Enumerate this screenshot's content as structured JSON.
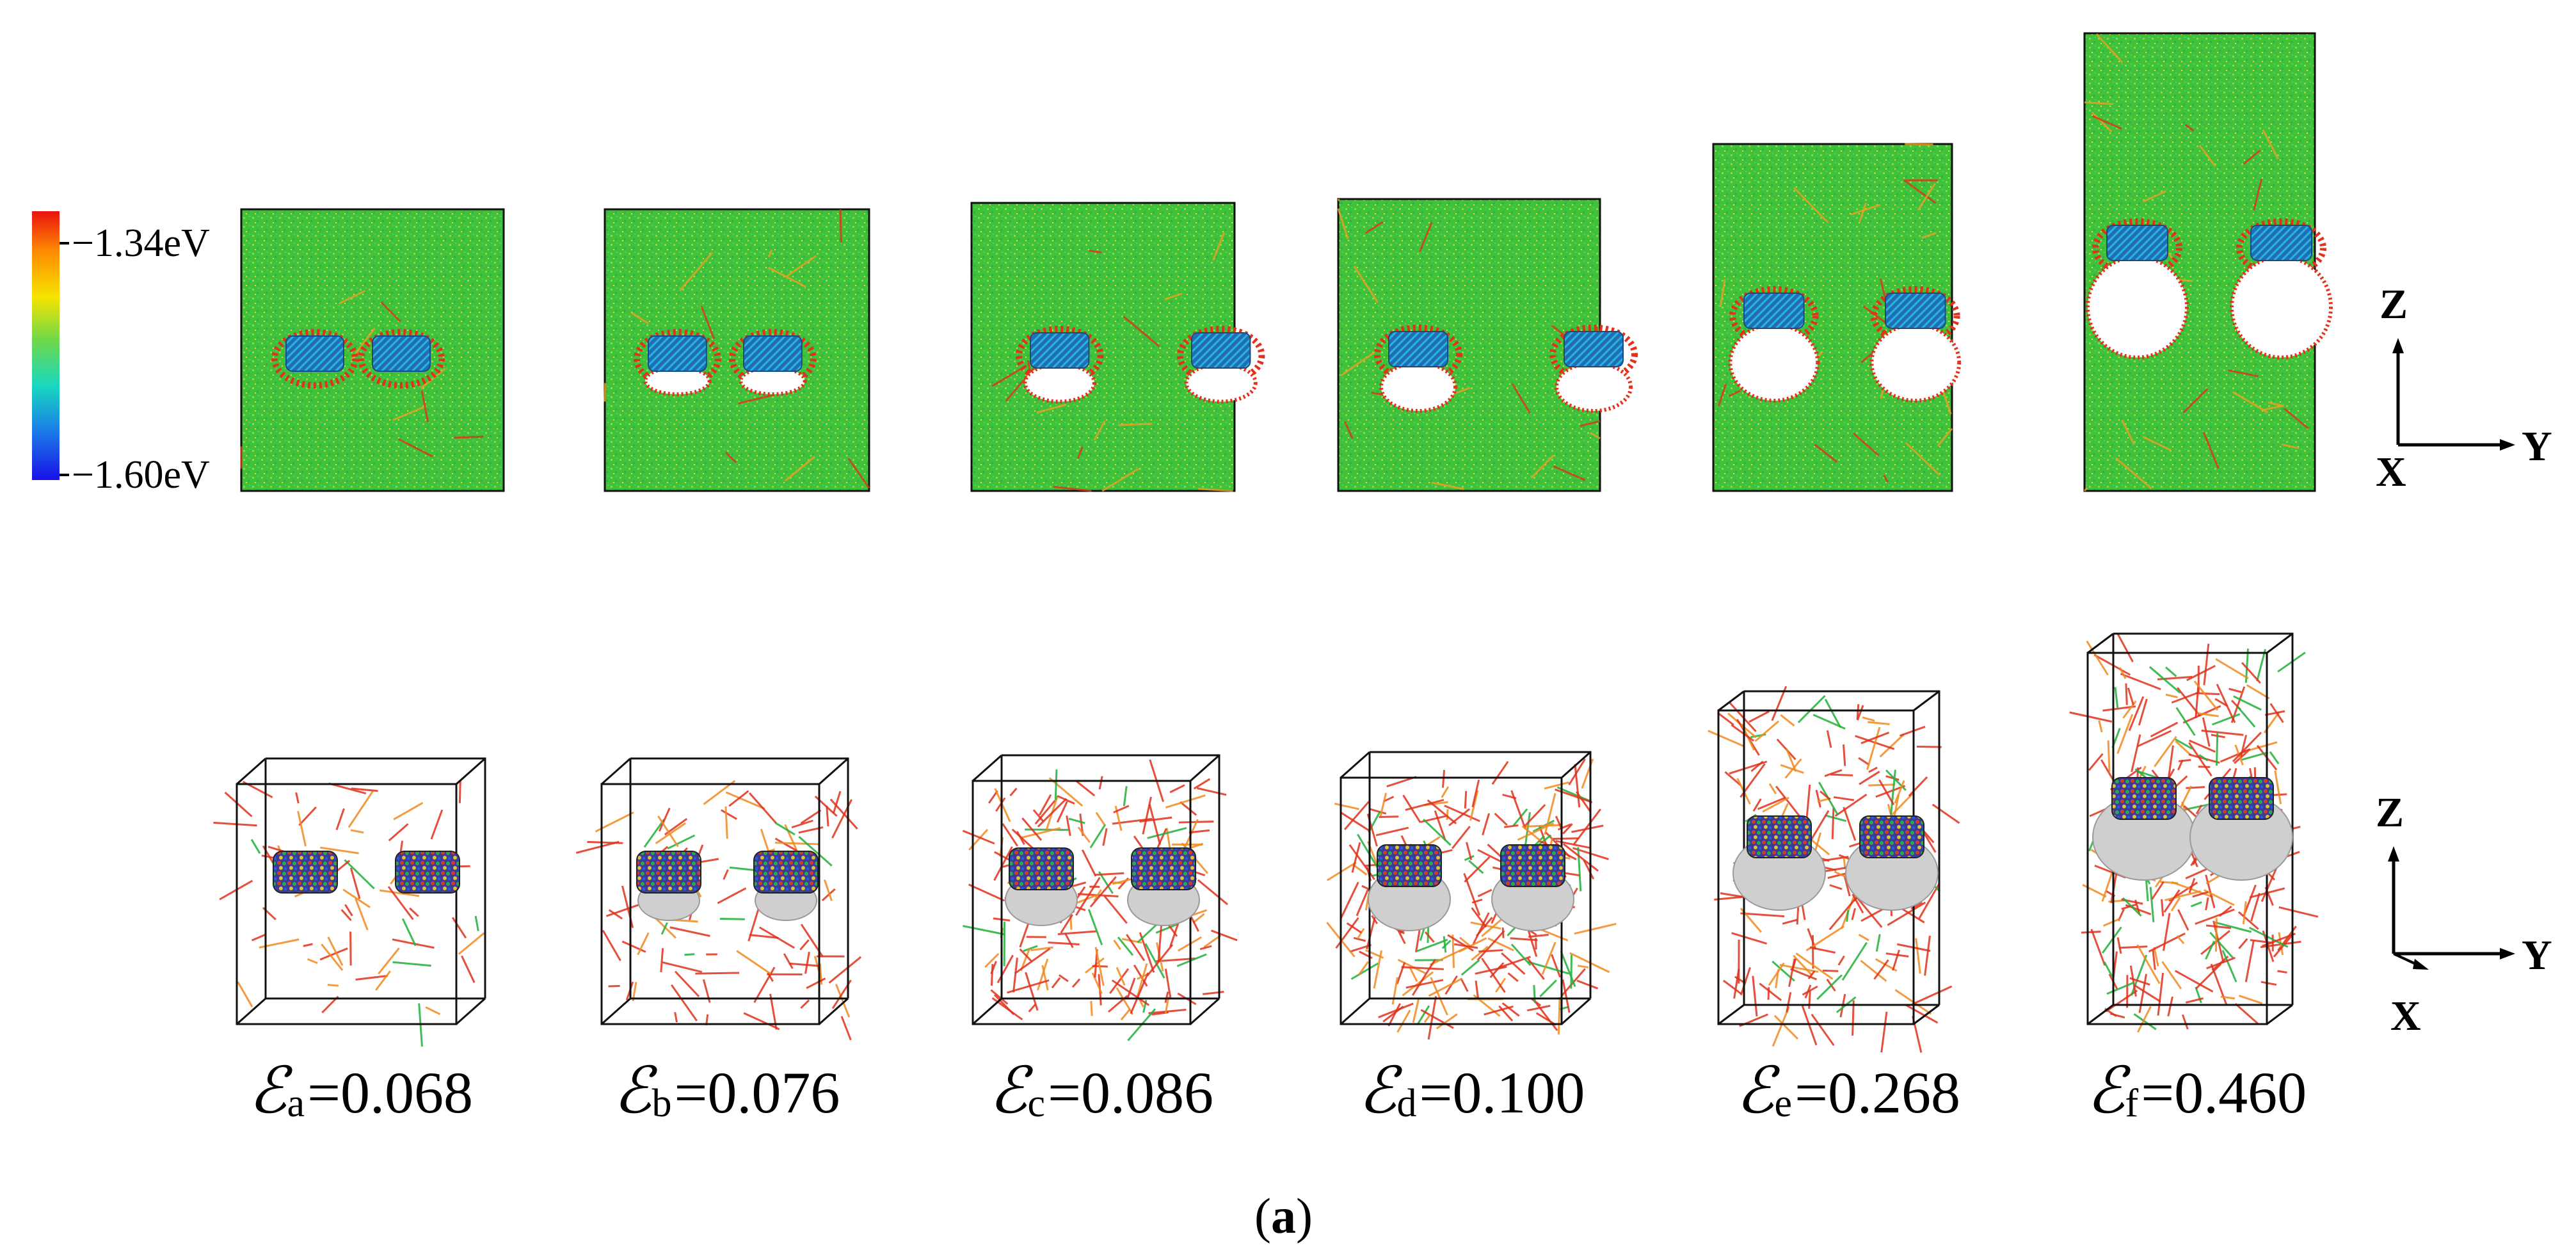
{
  "colorbar": {
    "max_label": "−1.34eV",
    "min_label": "−1.60eV",
    "colors": [
      "#e8130f",
      "#ff8c00",
      "#f5e400",
      "#6fd84a",
      "#18d8c0",
      "#1a7be8",
      "#1a10e8"
    ]
  },
  "panels": [
    {
      "symbol": "ℰ",
      "sub": "a",
      "value": "=0.068"
    },
    {
      "symbol": "ℰ",
      "sub": "b",
      "value": "=0.076"
    },
    {
      "symbol": "ℰ",
      "sub": "c",
      "value": "=0.086"
    },
    {
      "symbol": "ℰ",
      "sub": "d",
      "value": "=0.100"
    },
    {
      "symbol": "ℰ",
      "sub": "e",
      "value": "=0.268"
    },
    {
      "symbol": "ℰ",
      "sub": "f",
      "value": "=0.460"
    }
  ],
  "axes_top": {
    "z": "Z",
    "y": "Y",
    "x": "X"
  },
  "axes_bottom": {
    "z": "Z",
    "y": "Y",
    "x": "X"
  },
  "caption": {
    "open": "(",
    "letter": "a",
    "close": ")"
  },
  "colors": {
    "matrix_green": "#3fc23a",
    "disloc_red": "#e0321c",
    "void_gray": "#cfcfcf",
    "frame": "#111111"
  }
}
